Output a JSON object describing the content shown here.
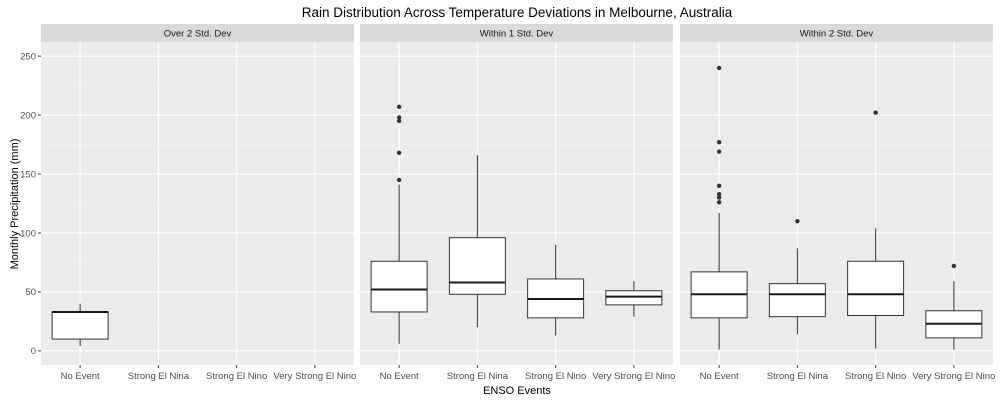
{
  "chart_data": {
    "type": "box",
    "title": "Rain Distribution Across Temperature Deviations in Melbourne, Australia",
    "xlabel": "ENSO Events",
    "ylabel": "Monthly Precipitation (mm)",
    "ylim": [
      -12,
      262
    ],
    "yticks": [
      0,
      50,
      100,
      150,
      200,
      250
    ],
    "categories": [
      "No Event",
      "Strong El Nina",
      "Strong El Nino",
      "Very Strong El Nino"
    ],
    "grid": true,
    "facets": [
      {
        "label": "Over 2 Std. Dev",
        "boxes": [
          {
            "category": "No Event",
            "min": 4,
            "q1": 10,
            "median": 33,
            "q3": 33,
            "max": 40,
            "outliers": []
          }
        ]
      },
      {
        "label": "Within 1 Std. Dev",
        "boxes": [
          {
            "category": "No Event",
            "min": 6,
            "q1": 33,
            "median": 52,
            "q3": 76,
            "max": 141,
            "outliers": [
              145,
              168,
              195,
              198,
              207
            ]
          },
          {
            "category": "Strong El Nina",
            "min": 20,
            "q1": 48,
            "median": 58,
            "q3": 96,
            "max": 166,
            "outliers": []
          },
          {
            "category": "Strong El Nino",
            "min": 13,
            "q1": 28,
            "median": 44,
            "q3": 61,
            "max": 90,
            "outliers": []
          },
          {
            "category": "Very Strong El Nino",
            "min": 29,
            "q1": 39,
            "median": 46,
            "q3": 51,
            "max": 59,
            "outliers": []
          }
        ]
      },
      {
        "label": "Within 2 Std. Dev",
        "boxes": [
          {
            "category": "No Event",
            "min": 1,
            "q1": 28,
            "median": 48,
            "q3": 67,
            "max": 117,
            "outliers": [
              126,
              130,
              133,
              140,
              169,
              177,
              240
            ]
          },
          {
            "category": "Strong El Nina",
            "min": 14,
            "q1": 29,
            "median": 48,
            "q3": 57,
            "max": 87,
            "outliers": [
              110
            ]
          },
          {
            "category": "Strong El Nino",
            "min": 2,
            "q1": 30,
            "median": 48,
            "q3": 76,
            "max": 104,
            "outliers": [
              202
            ]
          },
          {
            "category": "Very Strong El Nino",
            "min": 1,
            "q1": 11,
            "median": 23,
            "q3": 34,
            "max": 59,
            "outliers": [
              72
            ]
          }
        ]
      }
    ]
  }
}
